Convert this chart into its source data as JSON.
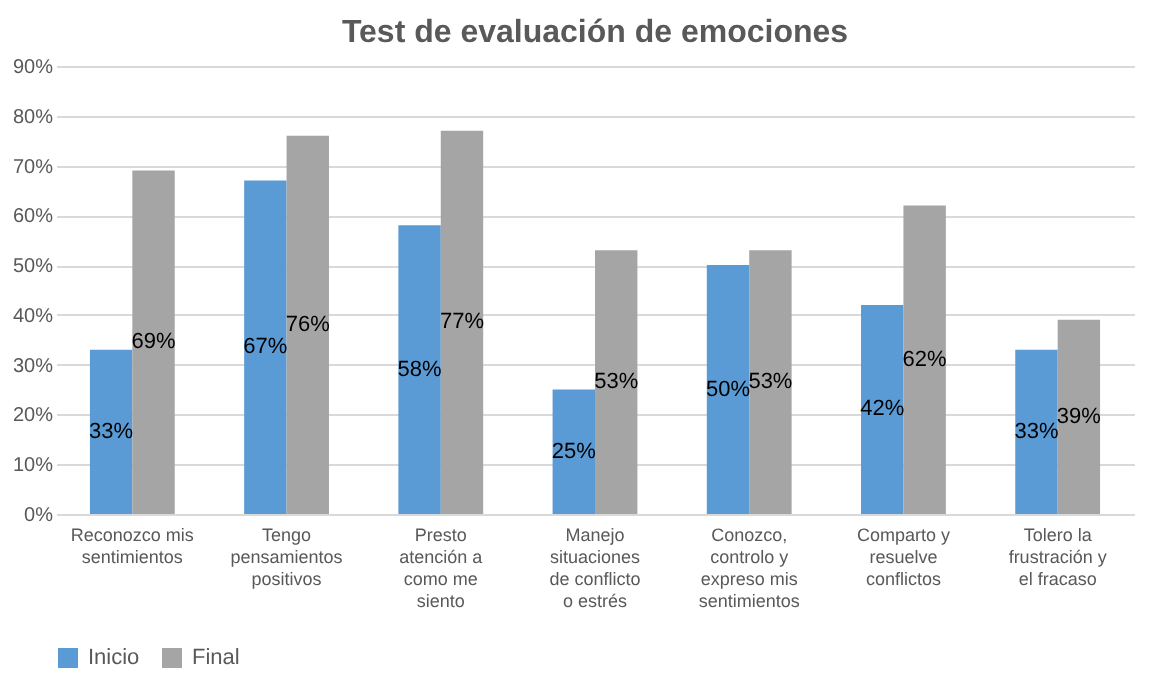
{
  "chart_data": {
    "type": "bar",
    "title": "Test de evaluación de emociones",
    "categories": [
      "Reconozco mis sentimientos",
      "Tengo pensamientos positivos",
      "Presto atención a como me siento",
      "Manejo situaciones de conflicto o estrés",
      "Conozco, controlo y expreso mis sentimientos",
      "Comparto y resuelve conflictos",
      "Tolero la frustración y el fracaso"
    ],
    "series": [
      {
        "name": "Inicio",
        "color": "#5b9bd5",
        "values": [
          33,
          67,
          58,
          25,
          50,
          42,
          33
        ],
        "value_labels": [
          "33%",
          "67%",
          "58%",
          "25%",
          "50%",
          "42%",
          "33%"
        ]
      },
      {
        "name": "Final",
        "color": "#a5a5a5",
        "values": [
          69,
          76,
          77,
          53,
          53,
          62,
          39
        ],
        "value_labels": [
          "69%",
          "76%",
          "77%",
          "53%",
          "53%",
          "62%",
          "39%"
        ]
      }
    ],
    "ylim": [
      0,
      90
    ],
    "yticks": [
      {
        "value": 0,
        "label": "0%"
      },
      {
        "value": 10,
        "label": "10%"
      },
      {
        "value": 20,
        "label": "20%"
      },
      {
        "value": 30,
        "label": "30%"
      },
      {
        "value": 40,
        "label": "40%"
      },
      {
        "value": 50,
        "label": "50%"
      },
      {
        "value": 60,
        "label": "60%"
      },
      {
        "value": 70,
        "label": "70%"
      },
      {
        "value": 80,
        "label": "80%"
      },
      {
        "value": 90,
        "label": "90%"
      }
    ],
    "grid": "y",
    "legend": "bottom"
  }
}
